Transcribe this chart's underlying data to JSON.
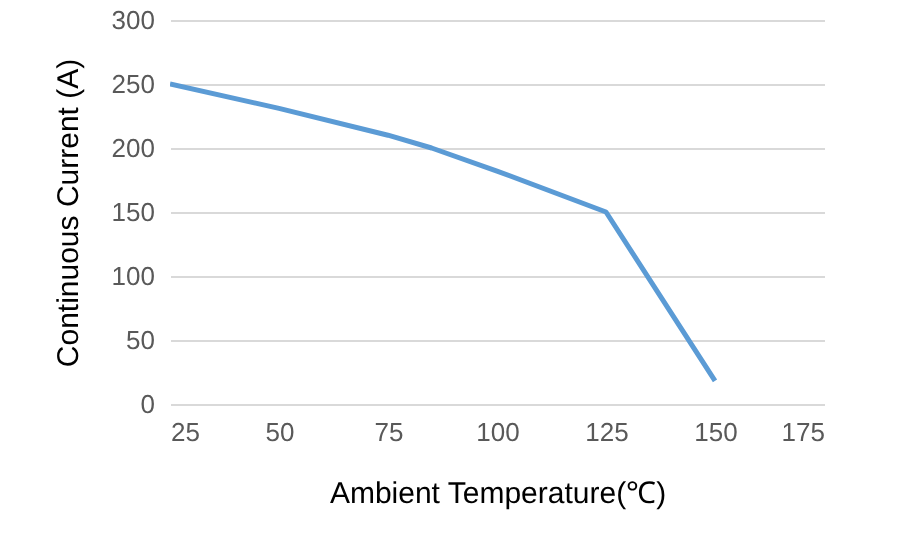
{
  "chart_data": {
    "type": "line",
    "xlabel": "Ambient Temperature(℃)",
    "ylabel": "Continuous Current (A)",
    "x": [
      25,
      50,
      75,
      85,
      100,
      125,
      150
    ],
    "series": [
      {
        "color": "#5b9bd5",
        "values": [
          250,
          231,
          210,
          200,
          182,
          150,
          18
        ]
      }
    ],
    "xlim": [
      25,
      175
    ],
    "xticks": [
      25,
      50,
      75,
      100,
      125,
      150,
      175
    ],
    "ylim": [
      0,
      300
    ],
    "yticks": [
      0,
      50,
      100,
      150,
      200,
      250,
      300
    ],
    "grid": "y",
    "marker": "none",
    "line_style": "solid"
  }
}
